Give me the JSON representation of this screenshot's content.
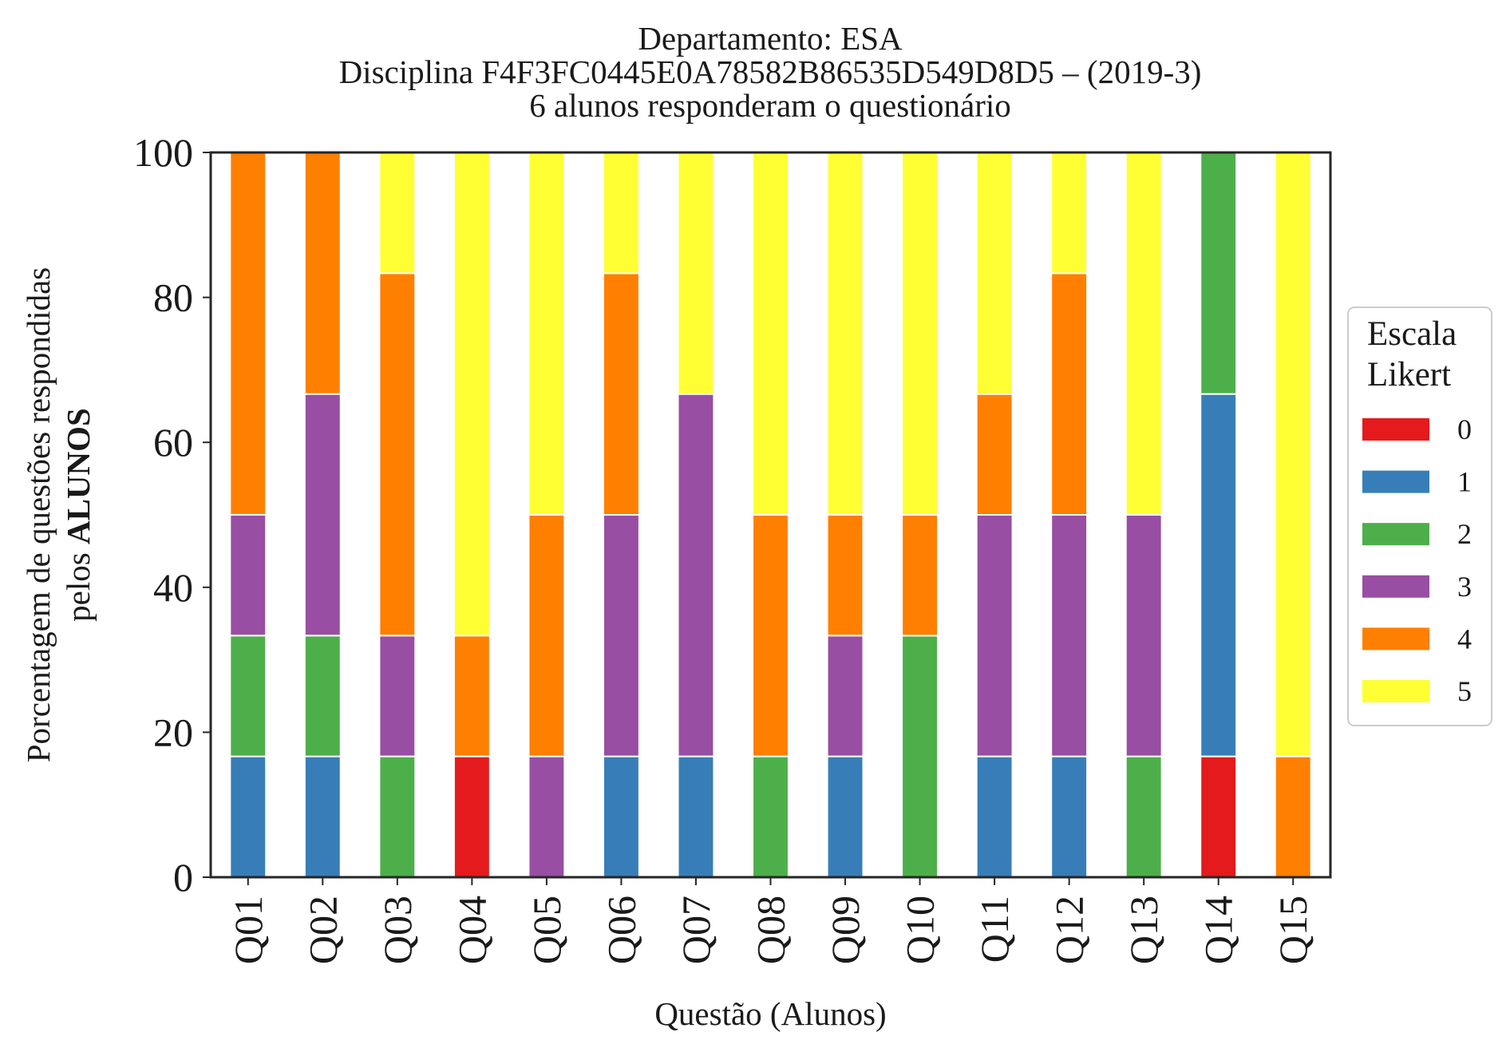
{
  "chart_data": {
    "type": "bar",
    "stacked": true,
    "title_lines": [
      "Departamento: ESA",
      "Disciplina F4F3FC0445E0A78582B86535D549D8D5 – (2019-3)",
      "6 alunos responderam o questionário"
    ],
    "xlabel": "Questão (Alunos)",
    "ylabel_line1": "Porcentagem de questões respondidas",
    "ylabel_line2_prefix": "pelos ",
    "ylabel_line2_bold": "ALUNOS",
    "ylim": [
      0,
      100
    ],
    "yticks": [
      0,
      20,
      40,
      60,
      80,
      100
    ],
    "categories": [
      "Q01",
      "Q02",
      "Q03",
      "Q04",
      "Q05",
      "Q06",
      "Q07",
      "Q08",
      "Q09",
      "Q10",
      "Q11",
      "Q12",
      "Q13",
      "Q14",
      "Q15"
    ],
    "legend": {
      "title_lines": [
        "Escala",
        "Likert"
      ],
      "placement": "center-right-outside"
    },
    "series": [
      {
        "name": "0",
        "color": "#e41a1c",
        "values": [
          0,
          0,
          0,
          16.67,
          0,
          0,
          0,
          0,
          0,
          0,
          0,
          0,
          0,
          16.67,
          0
        ]
      },
      {
        "name": "1",
        "color": "#377eb8",
        "values": [
          16.67,
          16.67,
          0,
          0,
          0,
          16.67,
          16.67,
          0,
          16.67,
          0,
          16.67,
          16.67,
          0,
          50,
          0
        ]
      },
      {
        "name": "2",
        "color": "#4daf4a",
        "values": [
          16.67,
          16.67,
          16.67,
          0,
          0,
          0,
          0,
          16.67,
          0,
          33.33,
          0,
          0,
          16.67,
          33.33,
          0
        ]
      },
      {
        "name": "3",
        "color": "#984ea3",
        "values": [
          16.67,
          33.33,
          16.67,
          0,
          16.67,
          33.33,
          50,
          0,
          16.67,
          0,
          33.33,
          33.33,
          33.33,
          0,
          0
        ]
      },
      {
        "name": "4",
        "color": "#ff7f00",
        "values": [
          50,
          33.33,
          50,
          16.67,
          33.33,
          33.33,
          0,
          33.33,
          16.67,
          16.67,
          16.67,
          33.33,
          0,
          0,
          16.67
        ]
      },
      {
        "name": "5",
        "color": "#ffff33",
        "values": [
          0,
          0,
          16.67,
          66.67,
          50,
          16.67,
          33.33,
          50,
          50,
          50,
          33.33,
          16.67,
          50,
          0,
          83.33
        ]
      }
    ],
    "grid": false
  }
}
